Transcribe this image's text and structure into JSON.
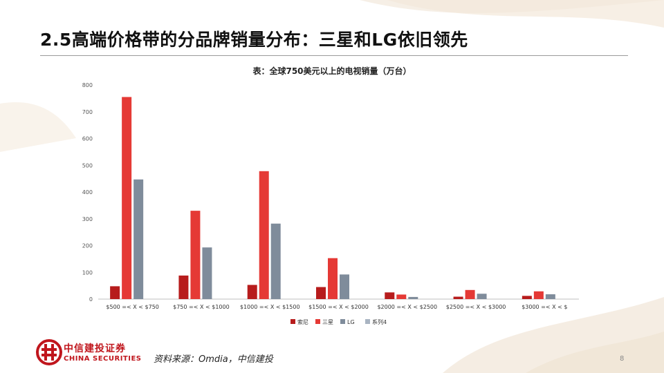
{
  "slide": {
    "title": "2.5高端价格带的分品牌销量分布：三星和LG依旧领先",
    "source": "资料来源：Omdia，中信建投",
    "page_number": "8",
    "logo_cn": "中信建投证券",
    "logo_en": "CHINA SECURITIES"
  },
  "colors": {
    "sony": "#b71c1c",
    "samsung": "#e53935",
    "lg": "#7f8c9b",
    "series4": "#a9b4c2",
    "brand_red": "#c0161d"
  },
  "chart_data": {
    "type": "bar",
    "title": "表：全球750美元以上的电视销量（万台）",
    "xlabel": "",
    "ylabel": "",
    "ylim": [
      0,
      800
    ],
    "yticks": [
      0,
      100,
      200,
      300,
      400,
      500,
      600,
      700,
      800
    ],
    "grid": false,
    "legend_position": "bottom",
    "categories": [
      "$500 =< X < $750",
      "$750 =< X < $1000",
      "$1000 =< X < $1500",
      "$1500 =< X < $2000",
      "$2000 =< X < $2500",
      "$2500 =< X < $3000",
      "$3000 =< X < $"
    ],
    "series": [
      {
        "name": "索尼",
        "color": "#b71c1c",
        "values": [
          48,
          88,
          53,
          45,
          25,
          9,
          12
        ]
      },
      {
        "name": "三星",
        "color": "#e53935",
        "values": [
          755,
          330,
          478,
          153,
          17,
          34,
          29
        ]
      },
      {
        "name": "LG",
        "color": "#7f8c9b",
        "values": [
          447,
          193,
          282,
          92,
          8,
          20,
          18
        ]
      },
      {
        "name": "系列4",
        "color": "#a9b4c2",
        "values": [
          0,
          0,
          0,
          0,
          0,
          0,
          0
        ]
      }
    ]
  }
}
